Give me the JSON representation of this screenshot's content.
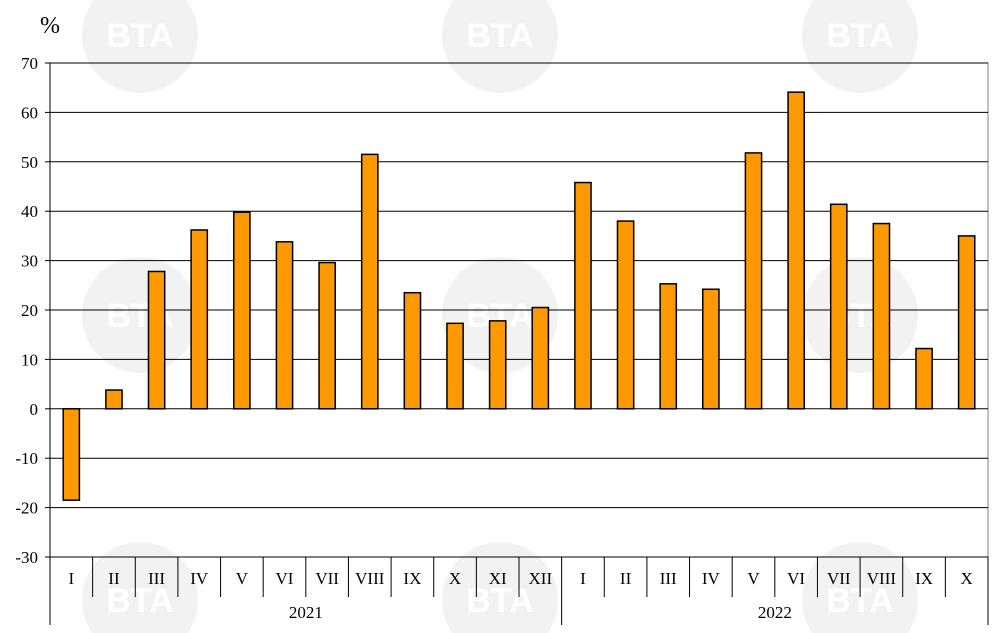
{
  "chart_data": {
    "type": "bar",
    "unit_label": "%",
    "ylim": [
      -30,
      70
    ],
    "yticks": [
      70,
      60,
      50,
      40,
      30,
      20,
      10,
      0,
      -10,
      -20,
      -30
    ],
    "grid": true,
    "bar_color": "#ff9900",
    "bar_edge_color": "#000000",
    "categories": [
      "I",
      "II",
      "III",
      "IV",
      "V",
      "VI",
      "VII",
      "VIII",
      "IX",
      "X",
      "XI",
      "XII",
      "I",
      "II",
      "III",
      "IV",
      "V",
      "VI",
      "VII",
      "VIII",
      "IX",
      "X"
    ],
    "values": [
      -18.5,
      3.8,
      27.8,
      36.2,
      39.8,
      33.8,
      29.6,
      51.5,
      23.5,
      17.3,
      17.8,
      20.5,
      45.8,
      38.0,
      25.3,
      24.2,
      51.8,
      64.1,
      41.4,
      37.5,
      12.2,
      35.0
    ],
    "years": [
      {
        "label": "2021",
        "count": 12
      },
      {
        "label": "2022",
        "count": 10
      }
    ]
  },
  "watermark": {
    "text": "BTA"
  }
}
